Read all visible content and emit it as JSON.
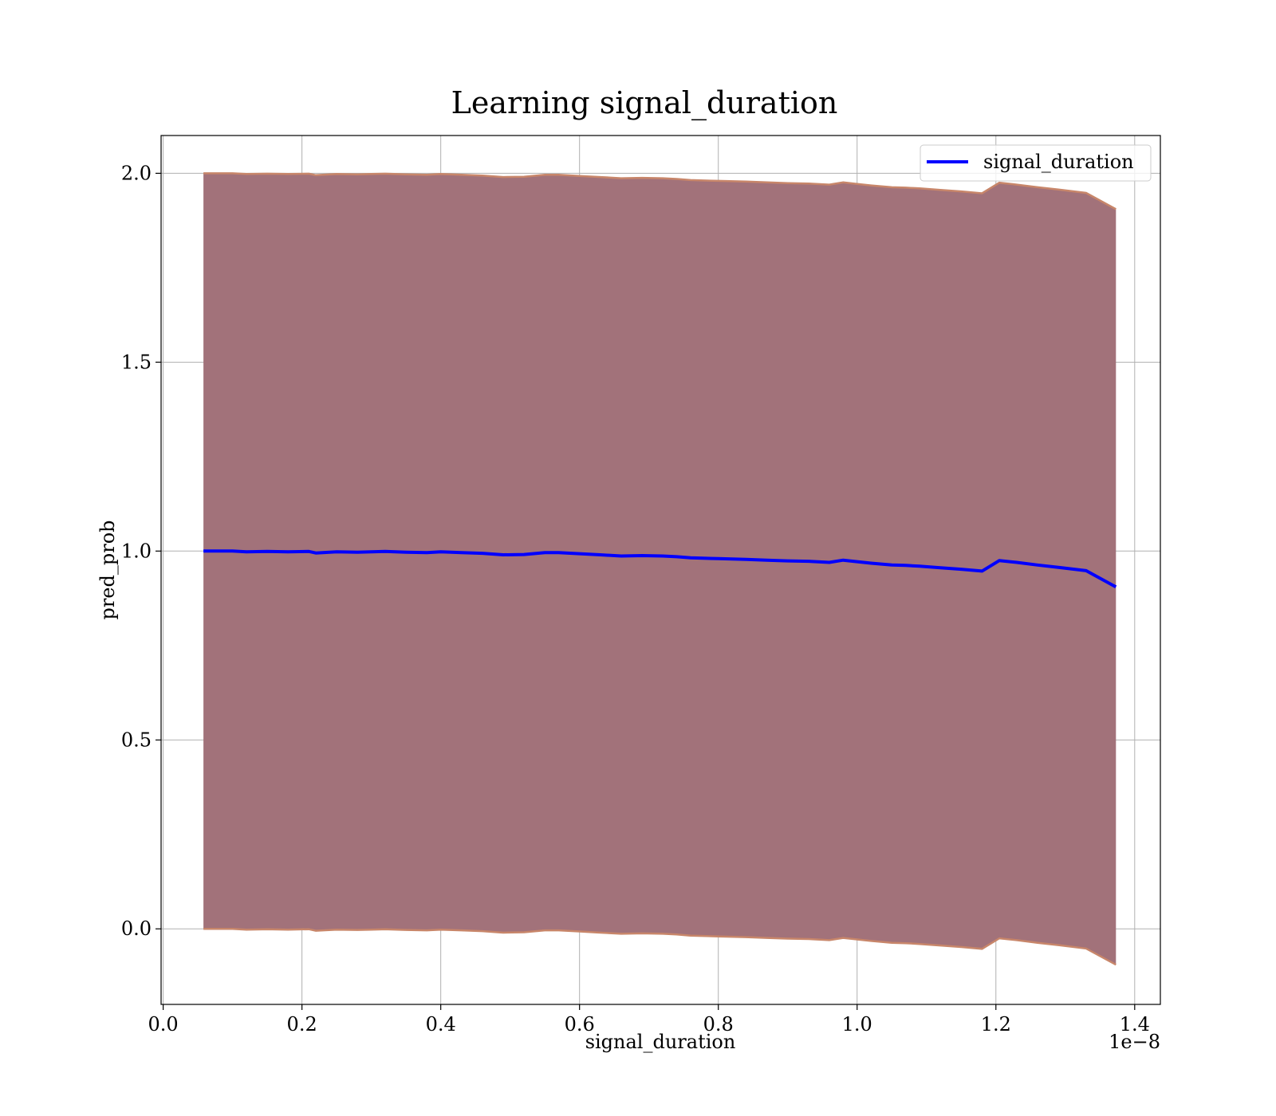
{
  "chart_data": {
    "type": "line",
    "title": "Learning signal_duration",
    "xlabel": "signal_duration",
    "ylabel": "pred_prob",
    "x_offset_label": "1e−8",
    "xlim": [
      -0.003,
      1.437
    ],
    "ylim": [
      -0.2,
      2.1
    ],
    "x_ticks": [
      0.0,
      0.2,
      0.4,
      0.6,
      0.8,
      1.0,
      1.2,
      1.4
    ],
    "x_tick_labels": [
      "0.0",
      "0.2",
      "0.4",
      "0.6",
      "0.8",
      "1.0",
      "1.2",
      "1.4"
    ],
    "y_ticks": [
      0.0,
      0.5,
      1.0,
      1.5,
      2.0
    ],
    "y_tick_labels": [
      "0.0",
      "0.5",
      "1.0",
      "1.5",
      "2.0"
    ],
    "grid": true,
    "legend": {
      "position": "top-right",
      "entries": [
        "signal_duration"
      ]
    },
    "colors": {
      "line": "#0000ff",
      "band_fill": "#a2727a",
      "band_edge": "#c8866a",
      "grid": "#b0b0b0"
    },
    "series": [
      {
        "name": "signal_duration",
        "x": [
          0.058,
          0.1,
          0.12,
          0.15,
          0.18,
          0.21,
          0.22,
          0.25,
          0.28,
          0.3,
          0.32,
          0.35,
          0.38,
          0.4,
          0.43,
          0.46,
          0.49,
          0.52,
          0.55,
          0.57,
          0.6,
          0.63,
          0.66,
          0.69,
          0.72,
          0.74,
          0.76,
          0.8,
          0.84,
          0.87,
          0.9,
          0.93,
          0.96,
          0.98,
          1.0,
          1.02,
          1.05,
          1.07,
          1.09,
          1.12,
          1.15,
          1.18,
          1.205,
          1.23,
          1.26,
          1.29,
          1.33,
          1.373
        ],
        "values": [
          1.0,
          1.0,
          0.998,
          0.999,
          0.998,
          0.999,
          0.995,
          0.998,
          0.997,
          0.998,
          0.999,
          0.997,
          0.996,
          0.998,
          0.996,
          0.994,
          0.99,
          0.991,
          0.996,
          0.996,
          0.993,
          0.99,
          0.987,
          0.988,
          0.987,
          0.985,
          0.982,
          0.98,
          0.978,
          0.976,
          0.974,
          0.973,
          0.97,
          0.976,
          0.972,
          0.968,
          0.963,
          0.962,
          0.96,
          0.956,
          0.952,
          0.947,
          0.975,
          0.97,
          0.963,
          0.957,
          0.948,
          0.905
        ],
        "band_upper": [
          2.0,
          2.0,
          1.998,
          1.999,
          1.998,
          1.999,
          1.995,
          1.998,
          1.997,
          1.998,
          1.999,
          1.997,
          1.996,
          1.998,
          1.996,
          1.994,
          1.99,
          1.991,
          1.996,
          1.996,
          1.993,
          1.99,
          1.987,
          1.988,
          1.987,
          1.985,
          1.982,
          1.98,
          1.978,
          1.976,
          1.974,
          1.973,
          1.97,
          1.976,
          1.972,
          1.968,
          1.963,
          1.962,
          1.96,
          1.956,
          1.952,
          1.947,
          1.975,
          1.97,
          1.963,
          1.957,
          1.948,
          1.905
        ],
        "band_lower": [
          0.0,
          0.0,
          -0.002,
          -0.001,
          -0.002,
          -0.001,
          -0.005,
          -0.002,
          -0.003,
          -0.002,
          -0.001,
          -0.003,
          -0.004,
          -0.002,
          -0.004,
          -0.006,
          -0.01,
          -0.009,
          -0.004,
          -0.004,
          -0.007,
          -0.01,
          -0.013,
          -0.012,
          -0.013,
          -0.015,
          -0.018,
          -0.02,
          -0.022,
          -0.024,
          -0.026,
          -0.027,
          -0.03,
          -0.024,
          -0.028,
          -0.032,
          -0.037,
          -0.038,
          -0.04,
          -0.044,
          -0.048,
          -0.053,
          -0.025,
          -0.03,
          -0.037,
          -0.043,
          -0.052,
          -0.095
        ]
      }
    ]
  }
}
